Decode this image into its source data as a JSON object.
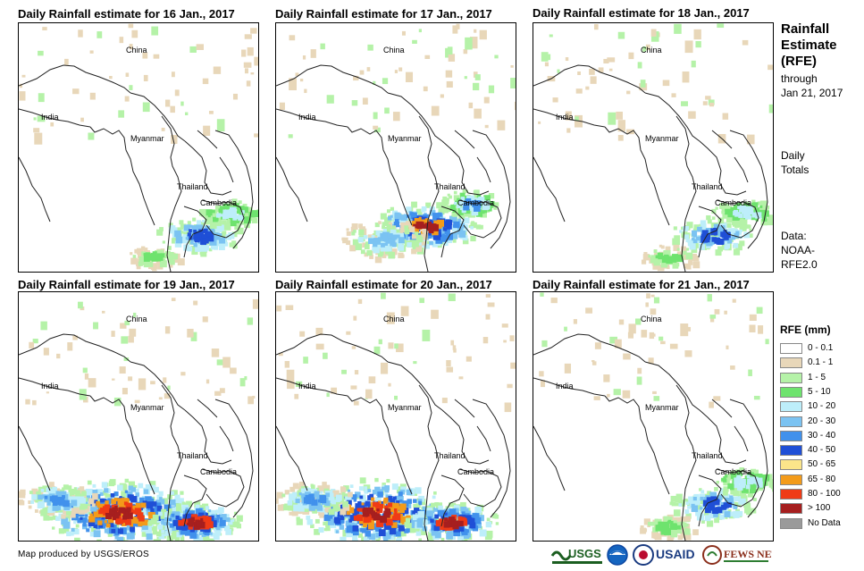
{
  "panels": [
    {
      "title": "Daily Rainfall estimate for 16 Jan., 2017",
      "date": "16 Jan., 2017",
      "rain_level": "light"
    },
    {
      "title": "Daily Rainfall estimate for 17 Jan., 2017",
      "date": "17 Jan., 2017",
      "rain_level": "moderate"
    },
    {
      "title": "Daily Rainfall estimate for 18 Jan., 2017",
      "date": "18 Jan., 2017",
      "rain_level": "light"
    },
    {
      "title": "Daily Rainfall estimate for 19 Jan., 2017",
      "date": "19 Jan., 2017",
      "rain_level": "heavy"
    },
    {
      "title": "Daily Rainfall estimate for 20 Jan., 2017",
      "date": "20 Jan., 2017",
      "rain_level": "heavy"
    },
    {
      "title": "Daily Rainfall estimate for 21 Jan., 2017",
      "date": "21 Jan., 2017",
      "rain_level": "light"
    }
  ],
  "map_labels": {
    "china": "China",
    "india": "India",
    "myanmar": "Myanmar",
    "thailand": "Thailand",
    "cambodia": "Cambodia"
  },
  "sidebar": {
    "heading_line1": "Rainfall",
    "heading_line2": "Estimate",
    "heading_line3": "(RFE)",
    "through_line1": "through",
    "through_line2": "Jan 21, 2017",
    "totals_line1": "Daily",
    "totals_line2": "Totals",
    "data_line1": "Data:",
    "data_line2": "NOAA-",
    "data_line3": "RFE2.0"
  },
  "legend": {
    "title": "RFE (mm)",
    "items": [
      {
        "label": "0 - 0.1",
        "color": "#ffffff"
      },
      {
        "label": "0.1 - 1",
        "color": "#e8d7b9"
      },
      {
        "label": "1 - 5",
        "color": "#b5f2a8"
      },
      {
        "label": "5 - 10",
        "color": "#6ee36e"
      },
      {
        "label": "10 - 20",
        "color": "#bdeefa"
      },
      {
        "label": "20 - 30",
        "color": "#7bc3f2"
      },
      {
        "label": "30 - 40",
        "color": "#4191ec"
      },
      {
        "label": "40 - 50",
        "color": "#1f4fd6"
      },
      {
        "label": "50 - 65",
        "color": "#fbe58a"
      },
      {
        "label": "65 - 80",
        "color": "#f39b1a"
      },
      {
        "label": "80 - 100",
        "color": "#ef3b16"
      },
      {
        "label": "> 100",
        "color": "#a61f1f"
      },
      {
        "label": "No Data",
        "color": "#9a9a9a"
      }
    ]
  },
  "footer": {
    "credit": "Map produced by USGS/EROS",
    "logo_usgs": "USGS",
    "logo_usaid": "USAID",
    "logo_fewsnet": "FEWS NET"
  },
  "colors": {
    "border_line": "#000000",
    "coast_line": "#222222"
  }
}
